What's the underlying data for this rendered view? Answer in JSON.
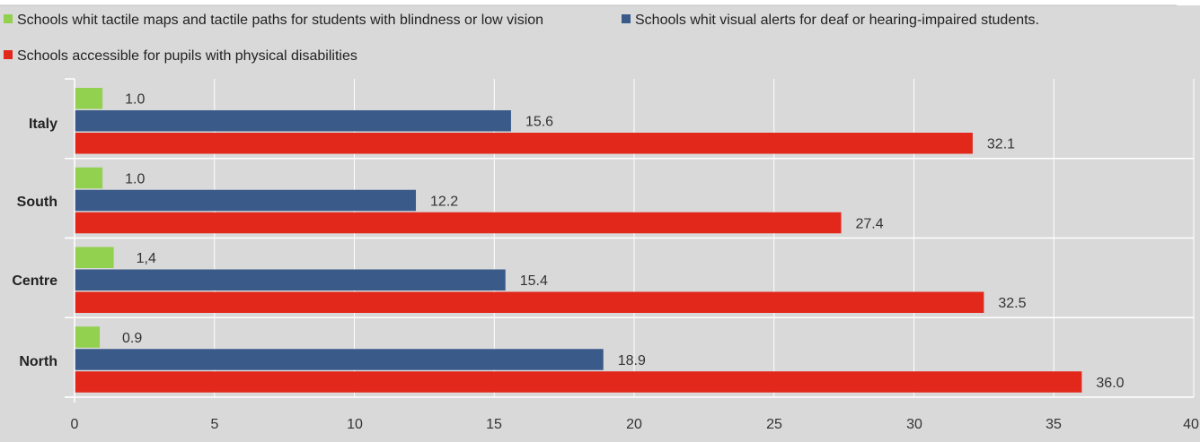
{
  "chart_data": {
    "type": "bar",
    "orientation": "horizontal",
    "categories": [
      "Italy",
      "South",
      "Centre",
      "North"
    ],
    "series": [
      {
        "name": "Schools whit tactile maps and tactile paths for students with blindness or low vision",
        "color": "#92d050",
        "values": [
          1.0,
          1.0,
          1.4,
          0.9
        ],
        "labels": [
          "1.0",
          "1.0",
          "1,4",
          "0.9"
        ]
      },
      {
        "name": "Schools whit visual alerts for deaf or hearing-impaired students.",
        "color": "#3a5a8a",
        "values": [
          15.6,
          12.2,
          15.4,
          18.9
        ],
        "labels": [
          "15.6",
          "12.2",
          "15.4",
          "18.9"
        ]
      },
      {
        "name": "Schools accessible for pupils with physical disabilities",
        "color": "#e2271b",
        "values": [
          32.1,
          27.4,
          32.5,
          36.0
        ],
        "labels": [
          "32.1",
          "27.4",
          "32.5",
          "36.0"
        ]
      }
    ],
    "xlim": [
      0,
      40
    ],
    "xticks": [
      "0",
      "5",
      "10",
      "15",
      "20",
      "25",
      "30",
      "35",
      "40"
    ],
    "grid": true,
    "legend": "top"
  }
}
